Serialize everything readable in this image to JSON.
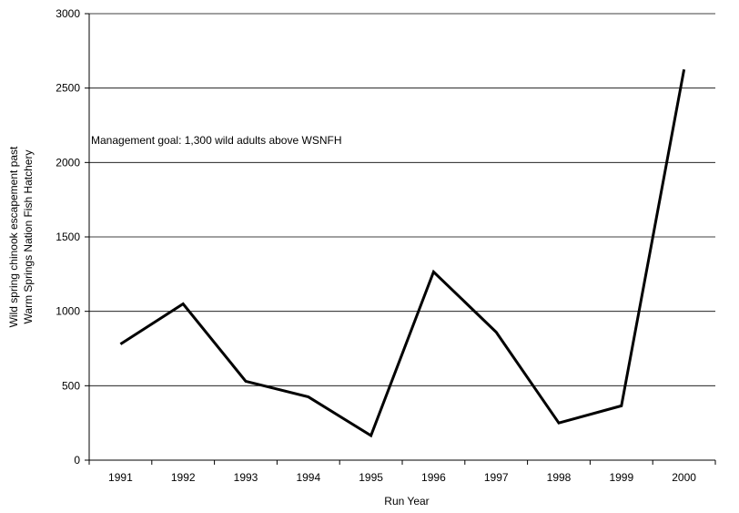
{
  "chart_data": {
    "type": "line",
    "title": "",
    "xlabel": "Run Year",
    "ylabel": [
      "Wild spring chinook escapement past",
      "Warm Springs Nation Fish Hatchery"
    ],
    "categories": [
      "1991",
      "1992",
      "1993",
      "1994",
      "1995",
      "1996",
      "1997",
      "1998",
      "1999",
      "2000"
    ],
    "series": [
      {
        "values": [
          780,
          1050,
          530,
          425,
          165,
          1265,
          860,
          250,
          365,
          2625
        ],
        "color": "#000000"
      }
    ],
    "ylim": [
      0,
      3000
    ],
    "yticks": [
      "0",
      "500",
      "1000",
      "1500",
      "2000",
      "2500",
      "3000"
    ],
    "ytick_values": [
      0,
      500,
      1000,
      1500,
      2000,
      2500,
      3000
    ],
    "grid": "horizontal",
    "legend": "none",
    "annotation": {
      "text": "Management goal:  1,300 wild adults above WSNFH"
    }
  }
}
